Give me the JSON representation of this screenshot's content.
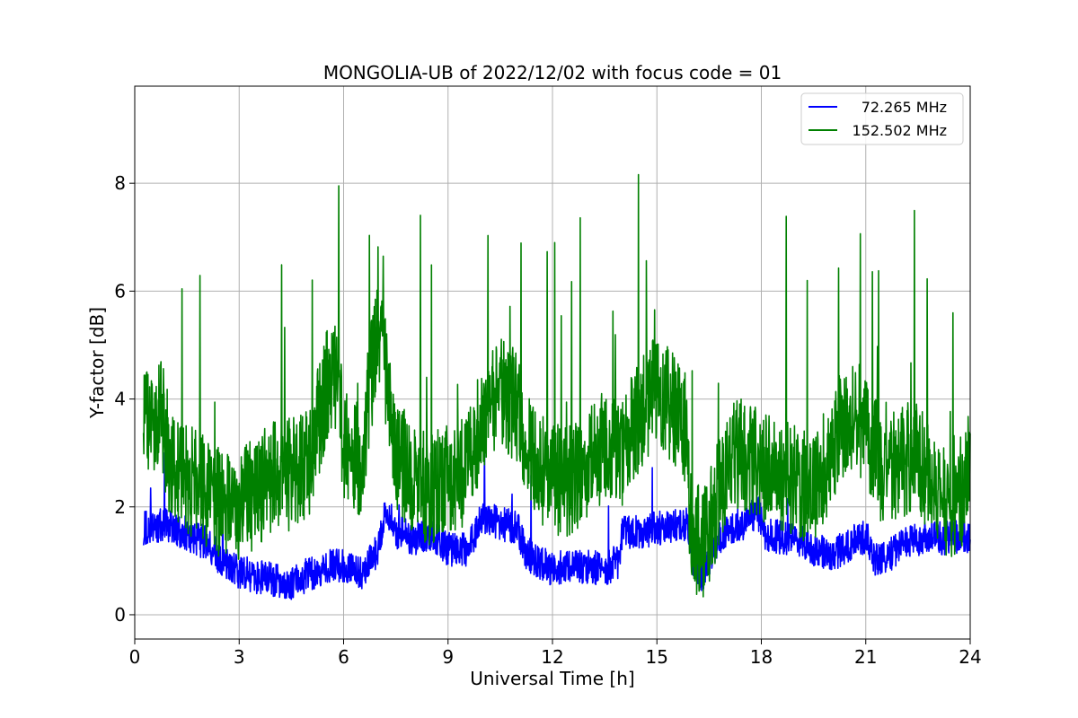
{
  "chart_data": {
    "type": "line",
    "title": "MONGOLIA-UB of 2022/12/02 with focus code = 01",
    "xlabel": "Universal Time [h]",
    "ylabel": "Y-factor [dB]",
    "xlim": [
      0,
      24
    ],
    "ylim": [
      -0.45,
      9.8
    ],
    "xticks": [
      0,
      3,
      6,
      9,
      12,
      15,
      18,
      21,
      24
    ],
    "yticks": [
      0,
      2,
      4,
      6,
      8
    ],
    "grid": true,
    "legend_position": "top-right",
    "series": [
      {
        "name": "72.265 MHz",
        "color": "#0000ff",
        "anchors": [
          [
            0.25,
            1.6
          ],
          [
            0.5,
            1.65
          ],
          [
            1.0,
            1.65
          ],
          [
            1.5,
            1.5
          ],
          [
            2.0,
            1.35
          ],
          [
            2.5,
            1.0
          ],
          [
            3.0,
            0.8
          ],
          [
            3.5,
            0.7
          ],
          [
            4.0,
            0.65
          ],
          [
            4.5,
            0.6
          ],
          [
            5.0,
            0.75
          ],
          [
            5.5,
            0.9
          ],
          [
            6.0,
            0.9
          ],
          [
            6.5,
            0.75
          ],
          [
            7.0,
            1.2
          ],
          [
            7.2,
            2.0
          ],
          [
            7.5,
            1.55
          ],
          [
            8.0,
            1.4
          ],
          [
            8.5,
            1.5
          ],
          [
            9.0,
            1.2
          ],
          [
            9.5,
            1.2
          ],
          [
            10.0,
            1.8
          ],
          [
            10.5,
            1.7
          ],
          [
            11.0,
            1.6
          ],
          [
            11.2,
            1.2
          ],
          [
            11.5,
            1.0
          ],
          [
            12.0,
            0.85
          ],
          [
            12.5,
            0.9
          ],
          [
            13.0,
            0.9
          ],
          [
            13.5,
            0.85
          ],
          [
            13.9,
            1.0
          ],
          [
            14.0,
            1.5
          ],
          [
            14.5,
            1.55
          ],
          [
            15.0,
            1.6
          ],
          [
            15.5,
            1.65
          ],
          [
            15.9,
            1.7
          ],
          [
            16.0,
            1.1
          ],
          [
            16.3,
            0.7
          ],
          [
            16.6,
            1.2
          ],
          [
            17.0,
            1.6
          ],
          [
            17.5,
            1.7
          ],
          [
            17.9,
            1.9
          ],
          [
            18.1,
            1.5
          ],
          [
            18.5,
            1.45
          ],
          [
            19.0,
            1.4
          ],
          [
            19.5,
            1.2
          ],
          [
            20.0,
            1.1
          ],
          [
            20.5,
            1.3
          ],
          [
            21.0,
            1.45
          ],
          [
            21.3,
            1.0
          ],
          [
            21.7,
            1.1
          ],
          [
            22.0,
            1.3
          ],
          [
            22.5,
            1.4
          ],
          [
            23.0,
            1.4
          ],
          [
            23.5,
            1.45
          ],
          [
            24.0,
            1.4
          ]
        ]
      },
      {
        "name": "152.502 MHz",
        "color": "#008000",
        "anchors": [
          [
            0.25,
            3.6
          ],
          [
            0.5,
            3.5
          ],
          [
            0.8,
            3.7
          ],
          [
            1.0,
            2.8
          ],
          [
            1.5,
            2.5
          ],
          [
            2.0,
            2.3
          ],
          [
            2.5,
            2.0
          ],
          [
            3.0,
            2.0
          ],
          [
            3.5,
            2.3
          ],
          [
            4.0,
            2.6
          ],
          [
            4.5,
            2.6
          ],
          [
            5.0,
            2.8
          ],
          [
            5.5,
            4.2
          ],
          [
            5.8,
            4.5
          ],
          [
            6.0,
            3.2
          ],
          [
            6.5,
            2.8
          ],
          [
            7.0,
            5.5
          ],
          [
            7.2,
            4.5
          ],
          [
            7.5,
            3.0
          ],
          [
            8.0,
            2.5
          ],
          [
            8.5,
            2.3
          ],
          [
            9.0,
            2.5
          ],
          [
            9.5,
            2.7
          ],
          [
            10.0,
            3.6
          ],
          [
            10.5,
            4.2
          ],
          [
            11.0,
            3.8
          ],
          [
            11.5,
            2.8
          ],
          [
            12.0,
            2.5
          ],
          [
            12.5,
            2.5
          ],
          [
            13.0,
            2.7
          ],
          [
            13.5,
            3.2
          ],
          [
            14.0,
            3.0
          ],
          [
            14.5,
            3.7
          ],
          [
            15.0,
            4.2
          ],
          [
            15.5,
            3.8
          ],
          [
            15.8,
            3.5
          ],
          [
            16.0,
            1.5
          ],
          [
            16.3,
            1.3
          ],
          [
            16.6,
            1.8
          ],
          [
            17.0,
            2.8
          ],
          [
            17.5,
            3.0
          ],
          [
            18.0,
            2.7
          ],
          [
            18.5,
            2.6
          ],
          [
            19.0,
            2.5
          ],
          [
            19.5,
            2.3
          ],
          [
            20.0,
            3.0
          ],
          [
            20.5,
            3.8
          ],
          [
            21.0,
            3.5
          ],
          [
            21.5,
            2.6
          ],
          [
            22.0,
            2.8
          ],
          [
            22.5,
            3.0
          ],
          [
            23.0,
            2.3
          ],
          [
            23.5,
            1.8
          ],
          [
            24.0,
            2.8
          ]
        ]
      }
    ]
  }
}
